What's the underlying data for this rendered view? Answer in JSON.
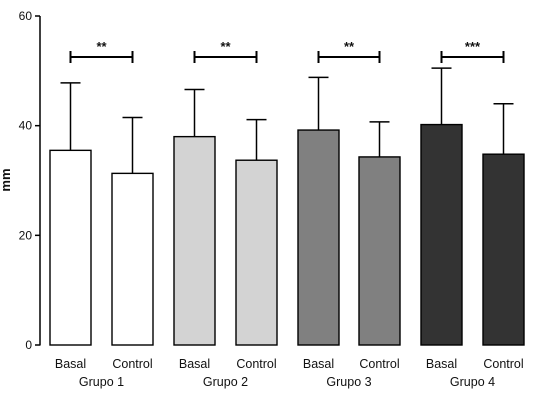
{
  "chart_data": {
    "type": "bar",
    "ylabel": "mm",
    "ylim": [
      0,
      60
    ],
    "yticks": [
      "0",
      "20",
      "40",
      "60"
    ],
    "groups": [
      {
        "name": "Grupo 1",
        "significance": "**",
        "bars": [
          {
            "label": "Basal",
            "value": 35.5,
            "error": 12.3,
            "color": "#ffffff"
          },
          {
            "label": "Control",
            "value": 31.3,
            "error": 10.2,
            "color": "#ffffff"
          }
        ]
      },
      {
        "name": "Grupo 2",
        "significance": "**",
        "bars": [
          {
            "label": "Basal",
            "value": 38.0,
            "error": 8.6,
            "color": "#d3d3d3"
          },
          {
            "label": "Control",
            "value": 33.7,
            "error": 7.4,
            "color": "#d3d3d3"
          }
        ]
      },
      {
        "name": "Grupo 3",
        "significance": "**",
        "bars": [
          {
            "label": "Basal",
            "value": 39.2,
            "error": 9.6,
            "color": "#808080"
          },
          {
            "label": "Control",
            "value": 34.3,
            "error": 6.4,
            "color": "#808080"
          }
        ]
      },
      {
        "name": "Grupo 4",
        "significance": "***",
        "bars": [
          {
            "label": "Basal",
            "value": 40.2,
            "error": 10.3,
            "color": "#333333"
          },
          {
            "label": "Control",
            "value": 34.8,
            "error": 9.2,
            "color": "#333333"
          }
        ]
      }
    ],
    "grid": false,
    "legend": "none"
  }
}
